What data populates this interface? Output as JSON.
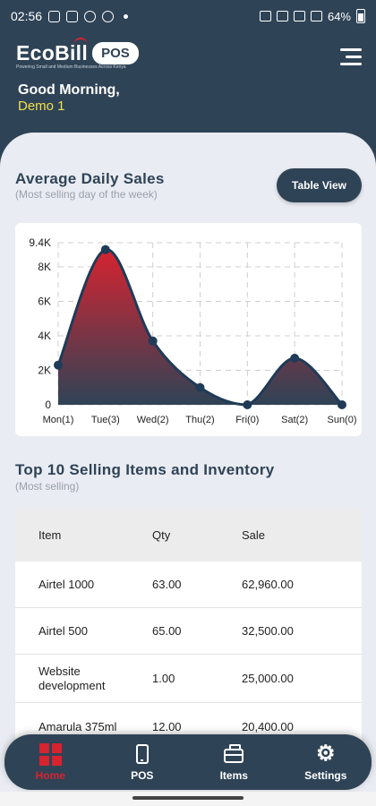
{
  "status_bar": {
    "time": "02:56",
    "battery": "64%"
  },
  "header": {
    "logo_text": "EcoBill",
    "logo_badge": "POS",
    "tagline": "Powering Small and Medium Businesses Across Kenya",
    "greeting": "Good Morning,",
    "username": "Demo 1"
  },
  "sales_section": {
    "title": "Average Daily Sales",
    "subtitle": "(Most selling day of the week)",
    "table_view_button": "Table View"
  },
  "chart_data": {
    "type": "area",
    "categories": [
      "Mon(1)",
      "Tue(3)",
      "Wed(2)",
      "Thu(2)",
      "Fri(0)",
      "Sat(2)",
      "Sun(0)"
    ],
    "values": [
      2300,
      9000,
      3700,
      1000,
      0,
      2700,
      0
    ],
    "y_ticks": [
      "0",
      "2K",
      "4K",
      "6K",
      "8K",
      "9.4K"
    ],
    "ylim": [
      0,
      9400
    ],
    "grid": true,
    "line_color": "#1f3b57",
    "fill_top": "#d62330",
    "fill_bottom": "#2f4356"
  },
  "top_items": {
    "title": "Top 10 Selling Items and Inventory",
    "subtitle": "(Most selling)",
    "columns": [
      "Item",
      "Qty",
      "Sale"
    ],
    "rows": [
      {
        "item": "Airtel 1000",
        "qty": "63.00",
        "sale": "62,960.00"
      },
      {
        "item": "Airtel 500",
        "qty": "65.00",
        "sale": "32,500.00"
      },
      {
        "item": "Website development",
        "qty": "1.00",
        "sale": "25,000.00"
      },
      {
        "item": "Amarula 375ml",
        "qty": "12.00",
        "sale": "20,400.00"
      }
    ]
  },
  "nav": {
    "home": "Home",
    "pos": "POS",
    "items": "Items",
    "settings": "Settings"
  }
}
